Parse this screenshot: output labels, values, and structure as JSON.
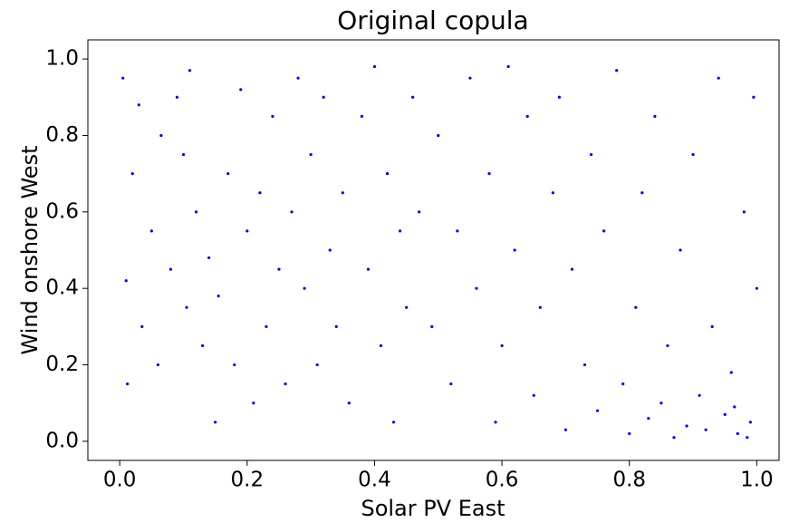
{
  "chart_data": {
    "type": "scatter",
    "title": "Original copula",
    "xlabel": "Solar PV East",
    "ylabel": "Wind onshore West",
    "color": "#0000ff",
    "x": [
      0.005,
      0.01,
      0.012,
      0.02,
      0.03,
      0.035,
      0.05,
      0.06,
      0.065,
      0.08,
      0.09,
      0.1,
      0.105,
      0.11,
      0.12,
      0.13,
      0.14,
      0.15,
      0.155,
      0.17,
      0.18,
      0.19,
      0.2,
      0.21,
      0.22,
      0.23,
      0.24,
      0.25,
      0.26,
      0.27,
      0.28,
      0.29,
      0.3,
      0.31,
      0.32,
      0.33,
      0.34,
      0.35,
      0.36,
      0.38,
      0.39,
      0.4,
      0.41,
      0.42,
      0.43,
      0.44,
      0.45,
      0.46,
      0.47,
      0.49,
      0.5,
      0.52,
      0.53,
      0.55,
      0.56,
      0.58,
      0.59,
      0.6,
      0.61,
      0.62,
      0.64,
      0.65,
      0.66,
      0.68,
      0.69,
      0.7,
      0.71,
      0.73,
      0.74,
      0.75,
      0.76,
      0.78,
      0.79,
      0.8,
      0.81,
      0.82,
      0.83,
      0.84,
      0.85,
      0.86,
      0.87,
      0.88,
      0.89,
      0.9,
      0.91,
      0.92,
      0.93,
      0.94,
      0.95,
      0.96,
      0.97,
      0.98,
      0.99,
      1.0,
      0.995,
      0.985,
      0.965
    ],
    "y": [
      0.95,
      0.42,
      0.15,
      0.7,
      0.88,
      0.3,
      0.55,
      0.2,
      0.8,
      0.45,
      0.9,
      0.75,
      0.35,
      0.97,
      0.6,
      0.25,
      0.48,
      0.05,
      0.38,
      0.7,
      0.2,
      0.92,
      0.55,
      0.1,
      0.65,
      0.3,
      0.85,
      0.45,
      0.15,
      0.6,
      0.95,
      0.4,
      0.75,
      0.2,
      0.9,
      0.5,
      0.3,
      0.65,
      0.1,
      0.85,
      0.45,
      0.98,
      0.25,
      0.7,
      0.05,
      0.55,
      0.35,
      0.9,
      0.6,
      0.3,
      0.8,
      0.15,
      0.55,
      0.95,
      0.4,
      0.7,
      0.05,
      0.25,
      0.98,
      0.5,
      0.85,
      0.12,
      0.35,
      0.65,
      0.9,
      0.03,
      0.45,
      0.2,
      0.75,
      0.08,
      0.55,
      0.97,
      0.15,
      0.02,
      0.35,
      0.65,
      0.06,
      0.85,
      0.1,
      0.25,
      0.01,
      0.5,
      0.04,
      0.75,
      0.12,
      0.03,
      0.3,
      0.95,
      0.07,
      0.18,
      0.02,
      0.6,
      0.05,
      0.4,
      0.9,
      0.01,
      0.09
    ],
    "xlim": [
      -0.05,
      1.035
    ],
    "ylim": [
      -0.05,
      1.05
    ],
    "xticks": [
      {
        "value": 0,
        "label": "0.0"
      },
      0.2,
      0.4,
      0.6,
      0.8,
      {
        "value": 1,
        "label": "1.0"
      }
    ],
    "yticks": [
      {
        "value": 0,
        "label": "0.0"
      },
      0.2,
      0.4,
      0.6,
      0.8,
      {
        "value": 1,
        "label": "1.0"
      }
    ]
  }
}
